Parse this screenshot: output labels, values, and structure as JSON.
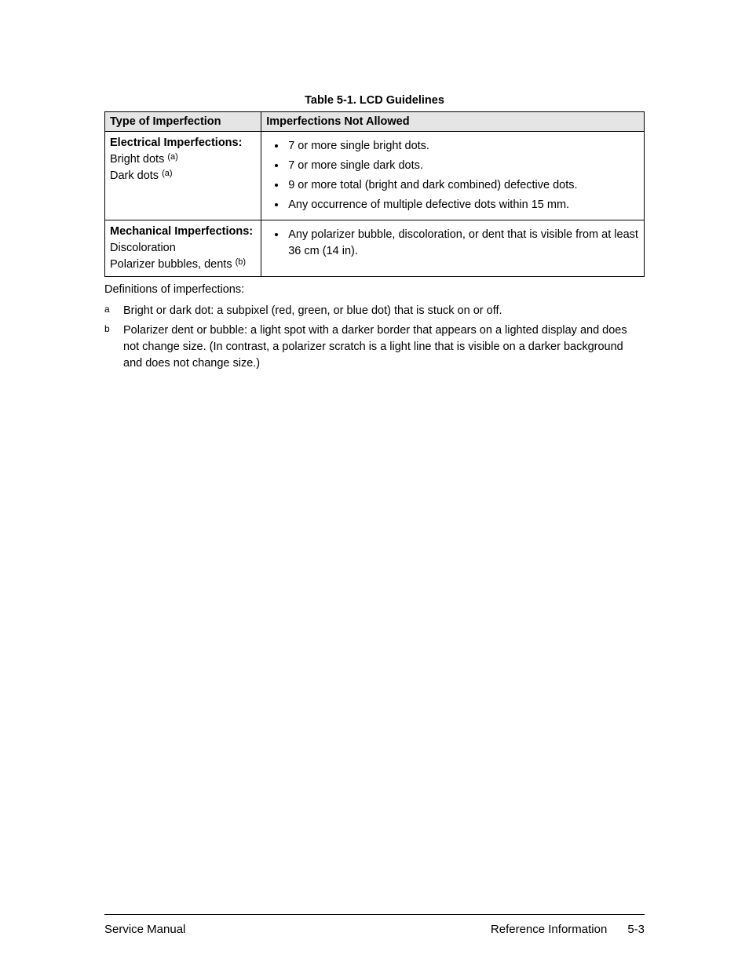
{
  "caption": "Table 5-1. LCD Guidelines",
  "headers": {
    "col1": "Type of Imperfection",
    "col2": "Imperfections Not Allowed"
  },
  "rows": [
    {
      "type_heading": "Electrical Imperfections:",
      "type_lines": [
        {
          "text": "Bright dots ",
          "sup": "(a)"
        },
        {
          "text": "Dark dots ",
          "sup": "(a)"
        }
      ],
      "bullets": [
        "7 or more single bright dots.",
        "7 or more single dark dots.",
        "9 or more total (bright and dark combined) defective dots.",
        "Any occurrence of multiple defective dots within 15 mm."
      ]
    },
    {
      "type_heading": "Mechanical Imperfections:",
      "type_lines": [
        {
          "text": "Discoloration",
          "sup": ""
        },
        {
          "text": "Polarizer bubbles, dents ",
          "sup": "(b)"
        }
      ],
      "bullets": [
        "Any polarizer bubble, discoloration, or dent that is visible from at least 36 cm (14 in)."
      ]
    }
  ],
  "defs_title": "Definitions of imperfections:",
  "notes": [
    {
      "mark": "a",
      "text": "Bright or dark dot: a subpixel (red, green, or blue dot) that is stuck on or off."
    },
    {
      "mark": "b",
      "text": "Polarizer dent or bubble: a light spot with a darker border that appears on a lighted display and does not change size. (In contrast, a polarizer scratch is a light line that is visible on a darker background and does not change size.)"
    }
  ],
  "footer": {
    "left": "Service Manual",
    "right_label": "Reference Information",
    "page": "5-3"
  }
}
